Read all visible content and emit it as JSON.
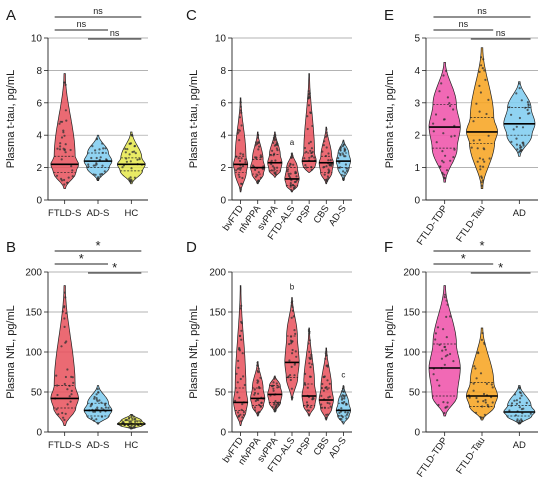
{
  "chart_data": [
    {
      "panel": "A",
      "type": "violin",
      "ylabel": "Plasma t-tau, pg/mL",
      "ylim": [
        0,
        10
      ],
      "yticks": [
        0,
        2,
        4,
        6,
        8,
        10
      ],
      "grid": true,
      "categories": [
        "FTLD-S",
        "AD-S",
        "HC"
      ],
      "colors": [
        "#e8505b",
        "#7dcbf0",
        "#e5e84a"
      ],
      "series": [
        {
          "median": 2.2,
          "q1": 1.7,
          "q3": 2.7,
          "min": 0.7,
          "max": 7.8
        },
        {
          "median": 2.4,
          "q1": 2.0,
          "q3": 2.9,
          "min": 1.2,
          "max": 4.0
        },
        {
          "median": 2.2,
          "q1": 1.8,
          "q3": 2.6,
          "min": 1.0,
          "max": 4.2
        }
      ],
      "comparisons": [
        {
          "pair": [
            "FTLD-S",
            "HC"
          ],
          "label": "ns"
        },
        {
          "pair": [
            "FTLD-S",
            "AD-S"
          ],
          "label": "ns"
        },
        {
          "pair": [
            "AD-S",
            "HC"
          ],
          "label": "ns"
        }
      ],
      "annotations": []
    },
    {
      "panel": "B",
      "type": "violin",
      "ylabel": "Plasma NfL, pg/mL",
      "ylim": [
        0,
        200
      ],
      "yticks": [
        0,
        50,
        100,
        150,
        200
      ],
      "grid": true,
      "categories": [
        "FTLD-S",
        "AD-S",
        "HC"
      ],
      "colors": [
        "#e8505b",
        "#7dcbf0",
        "#e5e84a"
      ],
      "series": [
        {
          "median": 42,
          "q1": 30,
          "q3": 58,
          "min": 8,
          "max": 183
        },
        {
          "median": 27,
          "q1": 20,
          "q3": 36,
          "min": 10,
          "max": 58
        },
        {
          "median": 10,
          "q1": 8,
          "q3": 14,
          "min": 4,
          "max": 22
        }
      ],
      "comparisons": [
        {
          "pair": [
            "FTLD-S",
            "HC"
          ],
          "label": "*"
        },
        {
          "pair": [
            "FTLD-S",
            "AD-S"
          ],
          "label": "*"
        },
        {
          "pair": [
            "AD-S",
            "HC"
          ],
          "label": "*"
        }
      ],
      "annotations": []
    },
    {
      "panel": "C",
      "type": "violin",
      "ylabel": "Plasma t-tau, pg/mL",
      "ylim": [
        0,
        10
      ],
      "yticks": [
        0,
        2,
        4,
        6,
        8,
        10
      ],
      "grid": true,
      "categories": [
        "bvFTD",
        "nfvPPA",
        "svPPA",
        "FTD-ALS",
        "PSP",
        "CBS",
        "AD-S"
      ],
      "colors": [
        "#e8505b",
        "#e8505b",
        "#e8505b",
        "#e8505b",
        "#e8505b",
        "#e8505b",
        "#7dcbf0"
      ],
      "series": [
        {
          "median": 2.2,
          "q1": 1.7,
          "q3": 2.7,
          "min": 0.5,
          "max": 6.3
        },
        {
          "median": 2.0,
          "q1": 1.6,
          "q3": 2.5,
          "min": 1.0,
          "max": 4.2
        },
        {
          "median": 2.3,
          "q1": 1.8,
          "q3": 2.8,
          "min": 1.4,
          "max": 4.2
        },
        {
          "median": 1.3,
          "q1": 0.9,
          "q3": 2.0,
          "min": 0.5,
          "max": 2.9
        },
        {
          "median": 2.4,
          "q1": 2.0,
          "q3": 2.9,
          "min": 1.7,
          "max": 7.8
        },
        {
          "median": 2.3,
          "q1": 1.7,
          "q3": 2.7,
          "min": 1.0,
          "max": 4.5
        },
        {
          "median": 2.4,
          "q1": 2.0,
          "q3": 2.9,
          "min": 1.2,
          "max": 3.7
        }
      ],
      "comparisons": [],
      "annotations": [
        {
          "category": "FTD-ALS",
          "text": "a"
        }
      ]
    },
    {
      "panel": "D",
      "type": "violin",
      "ylabel": "Plasma NfL, pg/mL",
      "ylim": [
        0,
        200
      ],
      "yticks": [
        0,
        50,
        100,
        150,
        200
      ],
      "grid": true,
      "categories": [
        "bvFTD",
        "nfvPPA",
        "svPPA",
        "FTD-ALS",
        "PSP",
        "CBS",
        "AD-S"
      ],
      "colors": [
        "#e8505b",
        "#e8505b",
        "#e8505b",
        "#e8505b",
        "#e8505b",
        "#e8505b",
        "#7dcbf0"
      ],
      "series": [
        {
          "median": 37,
          "q1": 27,
          "q3": 55,
          "min": 8,
          "max": 183
        },
        {
          "median": 42,
          "q1": 33,
          "q3": 55,
          "min": 20,
          "max": 88
        },
        {
          "median": 47,
          "q1": 37,
          "q3": 58,
          "min": 25,
          "max": 70
        },
        {
          "median": 87,
          "q1": 68,
          "q3": 120,
          "min": 40,
          "max": 168
        },
        {
          "median": 45,
          "q1": 33,
          "q3": 60,
          "min": 20,
          "max": 130
        },
        {
          "median": 40,
          "q1": 30,
          "q3": 55,
          "min": 15,
          "max": 105
        },
        {
          "median": 27,
          "q1": 20,
          "q3": 36,
          "min": 10,
          "max": 58
        }
      ],
      "comparisons": [],
      "annotations": [
        {
          "category": "FTD-ALS",
          "text": "b"
        },
        {
          "category": "AD-S",
          "text": "c"
        }
      ]
    },
    {
      "panel": "E",
      "type": "violin",
      "ylabel": "Plasma t-tau, pg/mL",
      "ylim": [
        0,
        5
      ],
      "yticks": [
        0,
        1,
        2,
        3,
        4,
        5
      ],
      "grid": true,
      "categories": [
        "FTLD-TDP",
        "FTLD-Tau",
        "AD"
      ],
      "colors": [
        "#ef4fa8",
        "#f7a21c",
        "#7dcbf0"
      ],
      "series": [
        {
          "median": 2.25,
          "q1": 1.6,
          "q3": 2.95,
          "min": 0.55,
          "max": 4.25
        },
        {
          "median": 2.1,
          "q1": 1.75,
          "q3": 2.55,
          "min": 0.35,
          "max": 4.7
        },
        {
          "median": 2.35,
          "q1": 2.0,
          "q3": 2.85,
          "min": 1.35,
          "max": 3.65
        }
      ],
      "comparisons": [
        {
          "pair": [
            "FTLD-TDP",
            "AD"
          ],
          "label": "ns"
        },
        {
          "pair": [
            "FTLD-TDP",
            "FTLD-Tau"
          ],
          "label": "ns"
        },
        {
          "pair": [
            "FTLD-Tau",
            "AD"
          ],
          "label": "ns"
        }
      ],
      "annotations": []
    },
    {
      "panel": "F",
      "type": "violin",
      "ylabel": "Plasma NfL, pg/mL",
      "ylim": [
        0,
        200
      ],
      "yticks": [
        0,
        50,
        100,
        150,
        200
      ],
      "grid": true,
      "categories": [
        "FTLD-TDP",
        "FTLD-Tau",
        "AD"
      ],
      "colors": [
        "#ef4fa8",
        "#f7a21c",
        "#7dcbf0"
      ],
      "series": [
        {
          "median": 80,
          "q1": 45,
          "q3": 110,
          "min": 20,
          "max": 183
        },
        {
          "median": 45,
          "q1": 32,
          "q3": 62,
          "min": 15,
          "max": 130
        },
        {
          "median": 25,
          "q1": 20,
          "q3": 33,
          "min": 10,
          "max": 58
        }
      ],
      "comparisons": [
        {
          "pair": [
            "FTLD-TDP",
            "AD"
          ],
          "label": "*"
        },
        {
          "pair": [
            "FTLD-TDP",
            "FTLD-Tau"
          ],
          "label": "*"
        },
        {
          "pair": [
            "FTLD-Tau",
            "AD"
          ],
          "label": "*"
        }
      ],
      "annotations": []
    }
  ]
}
